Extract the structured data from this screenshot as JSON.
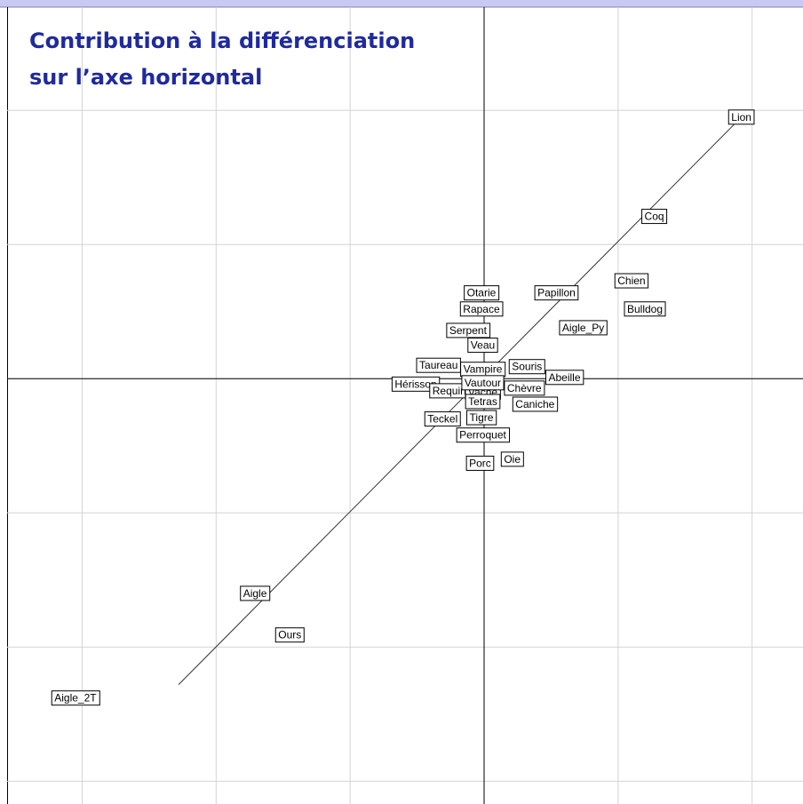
{
  "chart_data": {
    "type": "scatter",
    "title": [
      "Contribution à la différenciation",
      "sur l’axe horizontal"
    ],
    "xlim": [
      -3.56,
      2.38
    ],
    "ylim": [
      -3.17,
      2.77
    ],
    "xticks": [
      -3,
      -2,
      -1,
      0,
      1,
      2
    ],
    "yticks": [
      -3,
      -2,
      -1,
      0,
      1,
      2
    ],
    "grid": true,
    "trend_line": {
      "x": [
        -2.28,
        1.95
      ],
      "y": [
        -2.28,
        1.98
      ]
    },
    "points": [
      {
        "label": "Lion",
        "x": 1.92,
        "y": 1.95
      },
      {
        "label": "Coq",
        "x": 1.27,
        "y": 1.21
      },
      {
        "label": "Chien",
        "x": 1.1,
        "y": 0.73
      },
      {
        "label": "Bulldog",
        "x": 1.2,
        "y": 0.52
      },
      {
        "label": "Papillon",
        "x": 0.54,
        "y": 0.64
      },
      {
        "label": "Aigle_Py",
        "x": 0.74,
        "y": 0.38
      },
      {
        "label": "Otarie",
        "x": -0.02,
        "y": 0.64
      },
      {
        "label": "Rapace",
        "x": -0.02,
        "y": 0.52
      },
      {
        "label": "Serpent",
        "x": -0.12,
        "y": 0.36
      },
      {
        "label": "Taureau",
        "x": -0.34,
        "y": 0.1
      },
      {
        "label": "Hérisson",
        "x": -0.51,
        "y": -0.04
      },
      {
        "label": "Requin",
        "x": -0.26,
        "y": -0.09
      },
      {
        "label": "Teckel",
        "x": -0.31,
        "y": -0.3
      },
      {
        "label": "Chèvre",
        "x": 0.3,
        "y": -0.07
      },
      {
        "label": "Caniche",
        "x": 0.38,
        "y": -0.19
      },
      {
        "label": "Souris",
        "x": 0.32,
        "y": 0.09
      },
      {
        "label": "Abeille",
        "x": 0.6,
        "y": 0.01
      },
      {
        "label": "Veau",
        "x": -0.01,
        "y": 0.25
      },
      {
        "label": "Vampire",
        "x": -0.01,
        "y": 0.07
      },
      {
        "label": "Vache",
        "x": -0.01,
        "y": -0.1
      },
      {
        "label": "Vautour",
        "x": -0.01,
        "y": -0.03
      },
      {
        "label": "Tetras",
        "x": -0.01,
        "y": -0.17
      },
      {
        "label": "Tigre",
        "x": -0.02,
        "y": -0.29
      },
      {
        "label": "Perroquet",
        "x": -0.01,
        "y": -0.42
      },
      {
        "label": "Oie",
        "x": 0.21,
        "y": -0.6
      },
      {
        "label": "Porc",
        "x": -0.03,
        "y": -0.63
      },
      {
        "label": "Aigle",
        "x": -1.71,
        "y": -1.6
      },
      {
        "label": "Ours",
        "x": -1.45,
        "y": -1.91
      },
      {
        "label": "Aigle_2T",
        "x": -3.05,
        "y": -2.38
      }
    ]
  }
}
